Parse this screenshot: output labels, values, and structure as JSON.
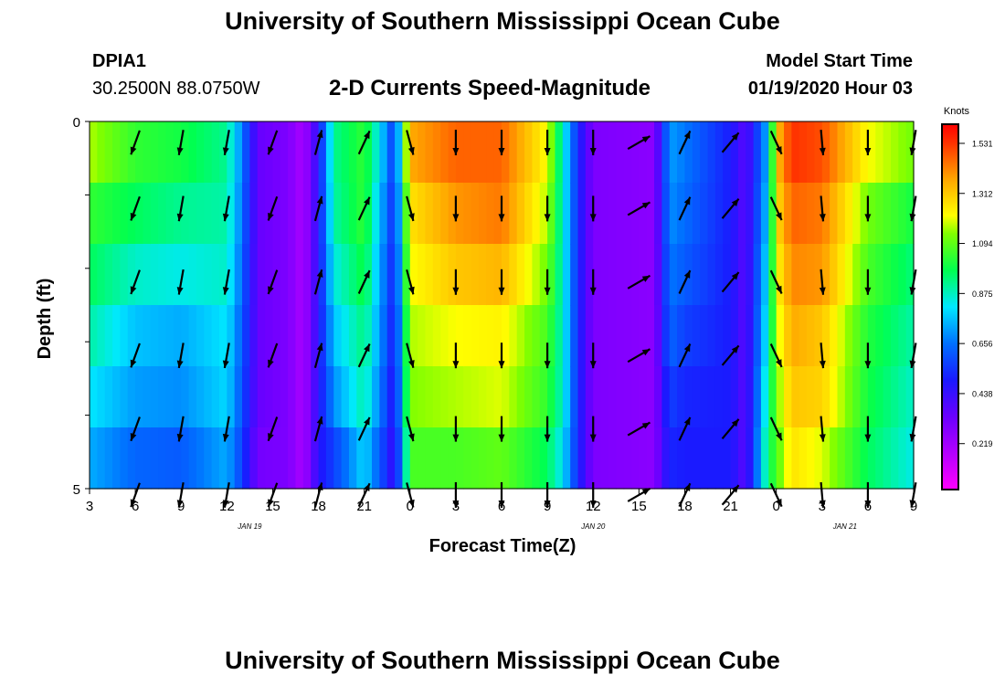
{
  "header": {
    "title": "University of Southern Mississippi Ocean Cube",
    "station_id": "DPIA1",
    "station_coords": "30.2500N 88.0750W",
    "plot_title": "2-D Currents Speed-Magnitude",
    "model_label": "Model Start Time",
    "model_time": "01/19/2020 Hour 03"
  },
  "footer": {
    "title": "University of Southern Mississippi Ocean Cube"
  },
  "chart_data": {
    "type": "heatmap",
    "title": "2-D Currents Speed-Magnitude",
    "xlabel": "Forecast Time(Z)",
    "ylabel": "Depth (ft)",
    "ylim": [
      0,
      5
    ],
    "y_tick_labels": [
      {
        "value": 0,
        "label": "0"
      },
      {
        "value": 5,
        "label": "5"
      }
    ],
    "y_minor_ticks": [
      0,
      1,
      2,
      3,
      4,
      5
    ],
    "x_hours_range": [
      3,
      57
    ],
    "x_ticks": [
      {
        "hour": 3,
        "label": "3"
      },
      {
        "hour": 6,
        "label": "6"
      },
      {
        "hour": 9,
        "label": "9"
      },
      {
        "hour": 12,
        "label": "12"
      },
      {
        "hour": 15,
        "label": "15"
      },
      {
        "hour": 18,
        "label": "18"
      },
      {
        "hour": 21,
        "label": "21"
      },
      {
        "hour": 24,
        "label": "0"
      },
      {
        "hour": 27,
        "label": "3"
      },
      {
        "hour": 30,
        "label": "6"
      },
      {
        "hour": 33,
        "label": "9"
      },
      {
        "hour": 36,
        "label": "12"
      },
      {
        "hour": 39,
        "label": "15"
      },
      {
        "hour": 42,
        "label": "18"
      },
      {
        "hour": 45,
        "label": "21"
      },
      {
        "hour": 48,
        "label": "0"
      },
      {
        "hour": 51,
        "label": "3"
      },
      {
        "hour": 54,
        "label": "6"
      },
      {
        "hour": 57,
        "label": "9"
      }
    ],
    "date_labels": [
      {
        "hour": 13.5,
        "label": "JAN 19"
      },
      {
        "hour": 36,
        "label": "JAN 20"
      },
      {
        "hour": 52.5,
        "label": "JAN 21"
      }
    ],
    "colorbar": {
      "unit": "Knots",
      "min": 0,
      "max": 1.6,
      "tick_labels": [
        "1.531",
        "1.312",
        "1.094",
        "0.875",
        "0.656",
        "0.438",
        "0.219"
      ]
    },
    "speed_anchors": [
      {
        "hour": 3,
        "values": [
          1.15,
          1.02,
          0.95,
          0.88,
          0.8,
          0.72
        ]
      },
      {
        "hour": 6,
        "values": [
          1.02,
          0.95,
          0.85,
          0.75,
          0.7,
          0.62
        ]
      },
      {
        "hour": 9,
        "values": [
          0.98,
          0.9,
          0.82,
          0.72,
          0.68,
          0.6
        ]
      },
      {
        "hour": 12,
        "values": [
          0.9,
          0.88,
          0.85,
          0.8,
          0.78,
          0.72
        ]
      },
      {
        "hour": 13,
        "values": [
          0.66,
          0.64,
          0.62,
          0.6,
          0.58,
          0.55
        ]
      },
      {
        "hour": 14,
        "values": [
          0.33,
          0.33,
          0.33,
          0.33,
          0.33,
          0.3
        ]
      },
      {
        "hour": 16,
        "values": [
          0.28,
          0.28,
          0.28,
          0.28,
          0.28,
          0.28
        ]
      },
      {
        "hour": 17,
        "values": [
          0.18,
          0.18,
          0.18,
          0.18,
          0.18,
          0.18
        ]
      },
      {
        "hour": 18,
        "values": [
          0.45,
          0.45,
          0.45,
          0.45,
          0.45,
          0.45
        ]
      },
      {
        "hour": 19,
        "values": [
          0.9,
          0.88,
          0.82,
          0.75,
          0.68,
          0.55
        ]
      },
      {
        "hour": 21,
        "values": [
          1.02,
          1.02,
          0.98,
          0.92,
          0.88,
          0.78
        ]
      },
      {
        "hour": 22,
        "values": [
          0.8,
          0.75,
          0.72,
          0.7,
          0.66,
          0.6
        ]
      },
      {
        "hour": 23,
        "values": [
          0.52,
          0.5,
          0.48,
          0.46,
          0.44,
          0.4
        ]
      },
      {
        "hour": 24,
        "values": [
          1.35,
          1.25,
          1.2,
          1.15,
          1.12,
          1.05
        ]
      },
      {
        "hour": 27,
        "values": [
          1.45,
          1.38,
          1.3,
          1.2,
          1.15,
          1.05
        ]
      },
      {
        "hour": 30,
        "values": [
          1.45,
          1.42,
          1.33,
          1.22,
          1.18,
          1.08
        ]
      },
      {
        "hour": 33,
        "values": [
          1.2,
          1.15,
          1.1,
          1.05,
          1.02,
          0.95
        ]
      },
      {
        "hour": 34,
        "values": [
          0.85,
          0.85,
          0.85,
          0.85,
          0.85,
          0.8
        ]
      },
      {
        "hour": 35,
        "values": [
          0.5,
          0.5,
          0.5,
          0.5,
          0.5,
          0.5
        ]
      },
      {
        "hour": 36,
        "values": [
          0.28,
          0.28,
          0.28,
          0.28,
          0.28,
          0.28
        ]
      },
      {
        "hour": 40,
        "values": [
          0.25,
          0.25,
          0.25,
          0.25,
          0.25,
          0.25
        ]
      },
      {
        "hour": 41,
        "values": [
          0.7,
          0.68,
          0.65,
          0.62,
          0.55,
          0.5
        ]
      },
      {
        "hour": 42,
        "values": [
          0.65,
          0.63,
          0.6,
          0.55,
          0.5,
          0.48
        ]
      },
      {
        "hour": 45,
        "values": [
          0.48,
          0.48,
          0.48,
          0.48,
          0.48,
          0.48
        ]
      },
      {
        "hour": 46,
        "values": [
          0.35,
          0.35,
          0.35,
          0.35,
          0.35,
          0.35
        ]
      },
      {
        "hour": 47.5,
        "values": [
          0.75,
          0.78,
          0.82,
          0.85,
          0.9,
          0.95
        ]
      },
      {
        "hour": 48,
        "values": [
          1.3,
          1.25,
          1.2,
          1.15,
          1.1,
          1.05
        ]
      },
      {
        "hour": 49,
        "values": [
          1.52,
          1.45,
          1.4,
          1.35,
          1.3,
          1.25
        ]
      },
      {
        "hour": 51,
        "values": [
          1.48,
          1.42,
          1.38,
          1.3,
          1.28,
          1.18
        ]
      },
      {
        "hour": 54,
        "values": [
          1.2,
          1.1,
          1.05,
          1.0,
          0.98,
          0.95
        ]
      },
      {
        "hour": 57,
        "values": [
          1.1,
          0.98,
          0.92,
          0.88,
          0.85,
          0.82
        ]
      }
    ],
    "vector_depths": [
      0.1,
      1.0,
      2.0,
      3.0,
      4.0,
      4.9
    ],
    "vectors": [
      {
        "hour": 6,
        "direction_deg": 200
      },
      {
        "hour": 9,
        "direction_deg": 190
      },
      {
        "hour": 12,
        "direction_deg": 190
      },
      {
        "hour": 15,
        "direction_deg": 200
      },
      {
        "hour": 18,
        "direction_deg": 15
      },
      {
        "hour": 21,
        "direction_deg": 25
      },
      {
        "hour": 24,
        "direction_deg": 165
      },
      {
        "hour": 27,
        "direction_deg": 180
      },
      {
        "hour": 30,
        "direction_deg": 180
      },
      {
        "hour": 33,
        "direction_deg": 180
      },
      {
        "hour": 36,
        "direction_deg": 180
      },
      {
        "hour": 39,
        "direction_deg": 60
      },
      {
        "hour": 42,
        "direction_deg": 25
      },
      {
        "hour": 45,
        "direction_deg": 40
      },
      {
        "hour": 48,
        "direction_deg": 155
      },
      {
        "hour": 51,
        "direction_deg": 175
      },
      {
        "hour": 54,
        "direction_deg": 180
      },
      {
        "hour": 57,
        "direction_deg": 190
      }
    ]
  }
}
